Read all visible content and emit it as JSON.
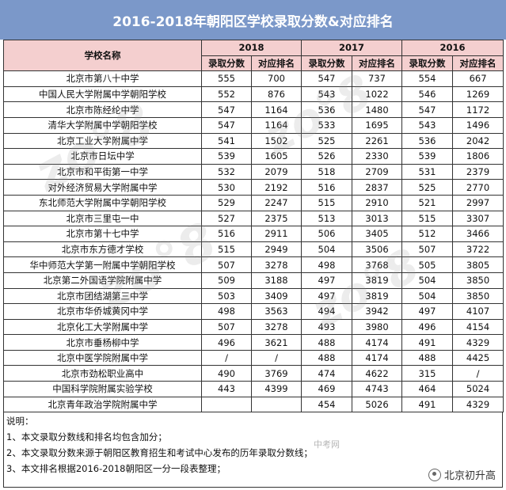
{
  "title": "2016-2018年朝阳区学校录取分数&对应排名",
  "header": {
    "school_label": "学校名称",
    "years": [
      "2018",
      "2017",
      "2016"
    ],
    "score_label": "录取分数",
    "rank_label": "对应排名"
  },
  "rows": [
    {
      "name": "北京市第八十中学",
      "y2018": [
        "555",
        "700"
      ],
      "y2017": [
        "547",
        "737"
      ],
      "y2016": [
        "554",
        "667"
      ]
    },
    {
      "name": "中国人民大学附属中学朝阳学校",
      "y2018": [
        "552",
        "876"
      ],
      "y2017": [
        "543",
        "1022"
      ],
      "y2016": [
        "546",
        "1269"
      ]
    },
    {
      "name": "北京市陈经纶中学",
      "y2018": [
        "547",
        "1164"
      ],
      "y2017": [
        "536",
        "1480"
      ],
      "y2016": [
        "547",
        "1172"
      ]
    },
    {
      "name": "清华大学附属中学朝阳学校",
      "y2018": [
        "547",
        "1164"
      ],
      "y2017": [
        "533",
        "1695"
      ],
      "y2016": [
        "543",
        "1496"
      ]
    },
    {
      "name": "北京工业大学附属中学",
      "y2018": [
        "541",
        "1502"
      ],
      "y2017": [
        "525",
        "2261"
      ],
      "y2016": [
        "536",
        "2042"
      ]
    },
    {
      "name": "北京市日坛中学",
      "y2018": [
        "539",
        "1605"
      ],
      "y2017": [
        "526",
        "2330"
      ],
      "y2016": [
        "539",
        "1806"
      ]
    },
    {
      "name": "北京市和平街第一中学",
      "y2018": [
        "532",
        "2079"
      ],
      "y2017": [
        "518",
        "2709"
      ],
      "y2016": [
        "531",
        "2379"
      ]
    },
    {
      "name": "对外经济贸易大学附属中学",
      "y2018": [
        "530",
        "2192"
      ],
      "y2017": [
        "516",
        "2837"
      ],
      "y2016": [
        "525",
        "2770"
      ]
    },
    {
      "name": "东北师范大学附属中学朝阳学校",
      "y2018": [
        "529",
        "2247"
      ],
      "y2017": [
        "515",
        "2910"
      ],
      "y2016": [
        "521",
        "2997"
      ]
    },
    {
      "name": "北京市三里屯一中",
      "y2018": [
        "527",
        "2375"
      ],
      "y2017": [
        "513",
        "3013"
      ],
      "y2016": [
        "515",
        "3307"
      ]
    },
    {
      "name": "北京市第十七中学",
      "y2018": [
        "516",
        "2911"
      ],
      "y2017": [
        "506",
        "3405"
      ],
      "y2016": [
        "512",
        "3466"
      ]
    },
    {
      "name": "北京市东方德才学校",
      "y2018": [
        "515",
        "2949"
      ],
      "y2017": [
        "504",
        "3506"
      ],
      "y2016": [
        "507",
        "3722"
      ]
    },
    {
      "name": "华中师范大学第一附属中学朝阳学校",
      "y2018": [
        "507",
        "3278"
      ],
      "y2017": [
        "498",
        "3768"
      ],
      "y2016": [
        "505",
        "3805"
      ]
    },
    {
      "name": "北京第二外国语学院附属中学",
      "y2018": [
        "509",
        "3188"
      ],
      "y2017": [
        "497",
        "3819"
      ],
      "y2016": [
        "504",
        "3850"
      ]
    },
    {
      "name": "北京市团结湖第三中学",
      "y2018": [
        "503",
        "3409"
      ],
      "y2017": [
        "497",
        "3819"
      ],
      "y2016": [
        "504",
        "3850"
      ]
    },
    {
      "name": "北京市华侨城黄冈中学",
      "y2018": [
        "498",
        "3563"
      ],
      "y2017": [
        "494",
        "3942"
      ],
      "y2016": [
        "497",
        "4107"
      ]
    },
    {
      "name": "北京化工大学附属中学",
      "y2018": [
        "507",
        "3278"
      ],
      "y2017": [
        "493",
        "3980"
      ],
      "y2016": [
        "496",
        "4154"
      ]
    },
    {
      "name": "北京市垂杨柳中学",
      "y2018": [
        "496",
        "3621"
      ],
      "y2017": [
        "488",
        "4174"
      ],
      "y2016": [
        "491",
        "4329"
      ]
    },
    {
      "name": "北京中医学院附属中学",
      "y2018": [
        "/",
        "/"
      ],
      "y2017": [
        "488",
        "4174"
      ],
      "y2016": [
        "488",
        "4425"
      ]
    },
    {
      "name": "北京市劲松职业高中",
      "y2018": [
        "490",
        "3769"
      ],
      "y2017": [
        "474",
        "4622"
      ],
      "y2016": [
        "315",
        "/"
      ]
    },
    {
      "name": "中国科学院附属实验学校",
      "y2018": [
        "443",
        "4399"
      ],
      "y2017": [
        "469",
        "4743"
      ],
      "y2016": [
        "464",
        "5024"
      ]
    },
    {
      "name": "北京青年政治学院附属中学",
      "y2018": [
        "",
        ""
      ],
      "y2017": [
        "454",
        "5026"
      ],
      "y2016": [
        "491",
        "4329"
      ]
    }
  ],
  "notes": {
    "heading": "说明：",
    "lines": [
      "1、本文录取分数线和排名均包含加分；",
      "2、本文录取分数来源于朝阳区教育招生和考试中心发布的历年录取分数线；",
      "3、本文排名根据2016-2018朝阳区一分一段表整理；"
    ]
  },
  "watermark_small": "中考网",
  "brand": "北京初升高",
  "brand_icon": "wechat-icon"
}
